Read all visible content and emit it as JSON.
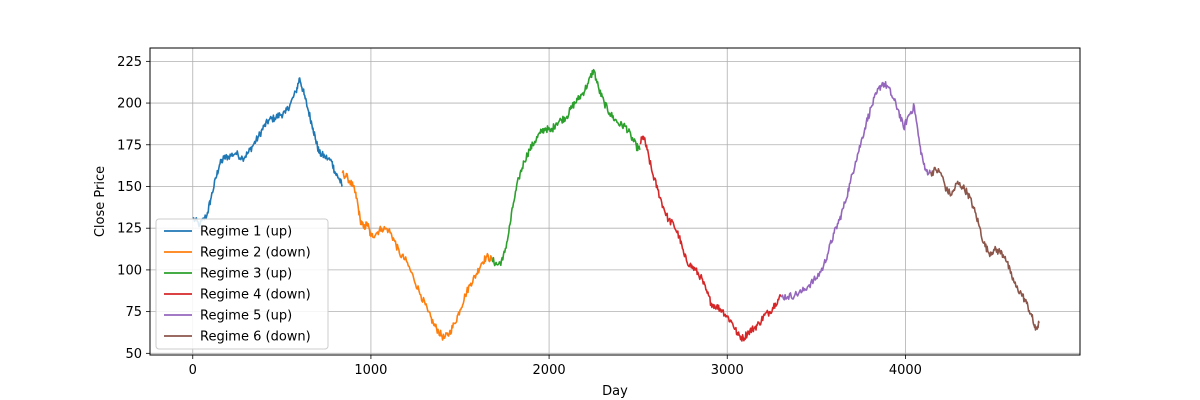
{
  "chart_data": {
    "type": "line",
    "title": "",
    "xlabel": "Day",
    "ylabel": "Close Price",
    "xlim": [
      -240,
      4980
    ],
    "ylim": [
      49,
      233
    ],
    "xticks": [
      0,
      1000,
      2000,
      3000,
      4000
    ],
    "yticks": [
      50,
      75,
      100,
      125,
      150,
      175,
      200,
      225
    ],
    "grid": true,
    "legend_position": "lower-left",
    "series": [
      {
        "name": "Regime 1 (up)",
        "color": "#1f77b4",
        "points": [
          [
            0,
            131
          ],
          [
            40,
            127
          ],
          [
            80,
            133
          ],
          [
            100,
            142
          ],
          [
            130,
            155
          ],
          [
            150,
            163
          ],
          [
            175,
            167
          ],
          [
            200,
            168
          ],
          [
            240,
            170
          ],
          [
            280,
            167
          ],
          [
            310,
            170
          ],
          [
            340,
            175
          ],
          [
            370,
            180
          ],
          [
            400,
            186
          ],
          [
            430,
            190
          ],
          [
            460,
            191
          ],
          [
            490,
            193
          ],
          [
            520,
            194
          ],
          [
            550,
            200
          ],
          [
            580,
            207
          ],
          [
            600,
            215
          ],
          [
            625,
            205
          ],
          [
            650,
            195
          ],
          [
            675,
            185
          ],
          [
            690,
            178
          ],
          [
            710,
            170
          ],
          [
            740,
            168
          ],
          [
            780,
            165
          ],
          [
            800,
            158
          ],
          [
            820,
            155
          ],
          [
            840,
            150
          ]
        ]
      },
      {
        "name": "Regime 2 (down)",
        "color": "#ff7f0e",
        "points": [
          [
            840,
            158
          ],
          [
            870,
            155
          ],
          [
            900,
            150
          ],
          [
            920,
            143
          ],
          [
            940,
            130
          ],
          [
            960,
            125
          ],
          [
            980,
            128
          ],
          [
            1000,
            120
          ],
          [
            1030,
            122
          ],
          [
            1060,
            125
          ],
          [
            1100,
            124
          ],
          [
            1130,
            118
          ],
          [
            1160,
            110
          ],
          [
            1200,
            105
          ],
          [
            1240,
            95
          ],
          [
            1280,
            85
          ],
          [
            1320,
            75
          ],
          [
            1350,
            68
          ],
          [
            1380,
            63
          ],
          [
            1410,
            59
          ],
          [
            1440,
            62
          ],
          [
            1470,
            68
          ],
          [
            1500,
            76
          ],
          [
            1530,
            85
          ],
          [
            1560,
            92
          ],
          [
            1590,
            97
          ],
          [
            1620,
            104
          ],
          [
            1650,
            108
          ],
          [
            1680,
            106
          ]
        ]
      },
      {
        "name": "Regime 3 (up)",
        "color": "#2ca02c",
        "points": [
          [
            1680,
            106
          ],
          [
            1710,
            103
          ],
          [
            1740,
            106
          ],
          [
            1770,
            120
          ],
          [
            1800,
            140
          ],
          [
            1830,
            155
          ],
          [
            1860,
            165
          ],
          [
            1890,
            172
          ],
          [
            1920,
            177
          ],
          [
            1950,
            182
          ],
          [
            1980,
            185
          ],
          [
            2010,
            183
          ],
          [
            2040,
            188
          ],
          [
            2070,
            190
          ],
          [
            2100,
            192
          ],
          [
            2130,
            198
          ],
          [
            2160,
            202
          ],
          [
            2190,
            206
          ],
          [
            2220,
            212
          ],
          [
            2250,
            220
          ],
          [
            2280,
            208
          ],
          [
            2310,
            200
          ],
          [
            2340,
            194
          ],
          [
            2370,
            190
          ],
          [
            2400,
            187
          ],
          [
            2430,
            186
          ],
          [
            2460,
            180
          ],
          [
            2490,
            174
          ],
          [
            2510,
            172
          ]
        ]
      },
      {
        "name": "Regime 4 (down)",
        "color": "#d62728",
        "points": [
          [
            2510,
            176
          ],
          [
            2530,
            180
          ],
          [
            2550,
            172
          ],
          [
            2580,
            158
          ],
          [
            2610,
            148
          ],
          [
            2640,
            138
          ],
          [
            2670,
            130
          ],
          [
            2700,
            127
          ],
          [
            2730,
            120
          ],
          [
            2760,
            108
          ],
          [
            2790,
            103
          ],
          [
            2820,
            100
          ],
          [
            2850,
            96
          ],
          [
            2880,
            88
          ],
          [
            2910,
            80
          ],
          [
            2940,
            78
          ],
          [
            2970,
            76
          ],
          [
            3000,
            72
          ],
          [
            3030,
            68
          ],
          [
            3060,
            61
          ],
          [
            3090,
            59
          ],
          [
            3120,
            63
          ],
          [
            3150,
            65
          ],
          [
            3180,
            68
          ],
          [
            3210,
            73
          ],
          [
            3240,
            75
          ],
          [
            3270,
            80
          ],
          [
            3300,
            84
          ]
        ]
      },
      {
        "name": "Regime 5 (up)",
        "color": "#9467bd",
        "points": [
          [
            3300,
            84
          ],
          [
            3340,
            84
          ],
          [
            3380,
            85
          ],
          [
            3420,
            87
          ],
          [
            3460,
            91
          ],
          [
            3500,
            95
          ],
          [
            3540,
            102
          ],
          [
            3570,
            112
          ],
          [
            3600,
            122
          ],
          [
            3630,
            130
          ],
          [
            3660,
            140
          ],
          [
            3690,
            152
          ],
          [
            3720,
            165
          ],
          [
            3750,
            176
          ],
          [
            3780,
            188
          ],
          [
            3810,
            198
          ],
          [
            3840,
            206
          ],
          [
            3870,
            212
          ],
          [
            3900,
            210
          ],
          [
            3930,
            203
          ],
          [
            3960,
            196
          ],
          [
            3990,
            185
          ],
          [
            4020,
            193
          ],
          [
            4050,
            198
          ],
          [
            4080,
            175
          ],
          [
            4110,
            160
          ],
          [
            4140,
            158
          ]
        ]
      },
      {
        "name": "Regime 6 (down)",
        "color": "#8c564b",
        "points": [
          [
            4140,
            158
          ],
          [
            4170,
            160
          ],
          [
            4200,
            158
          ],
          [
            4230,
            148
          ],
          [
            4260,
            145
          ],
          [
            4290,
            152
          ],
          [
            4320,
            150
          ],
          [
            4350,
            146
          ],
          [
            4380,
            138
          ],
          [
            4410,
            128
          ],
          [
            4440,
            116
          ],
          [
            4470,
            110
          ],
          [
            4500,
            112
          ],
          [
            4530,
            111
          ],
          [
            4560,
            108
          ],
          [
            4590,
            98
          ],
          [
            4620,
            90
          ],
          [
            4650,
            86
          ],
          [
            4680,
            80
          ],
          [
            4710,
            72
          ],
          [
            4730,
            64
          ],
          [
            4750,
            68
          ]
        ]
      }
    ]
  }
}
